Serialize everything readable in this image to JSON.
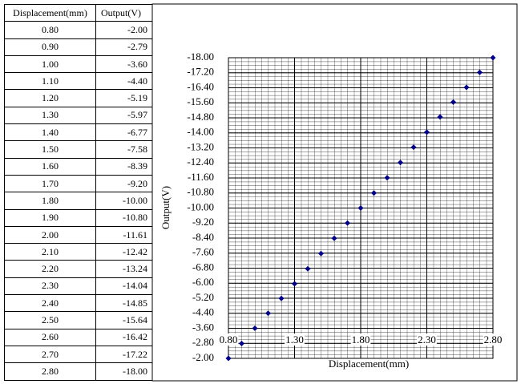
{
  "table": {
    "header": [
      "Displacement(mm)",
      "Output(V)"
    ],
    "rows": [
      [
        "0.80",
        "-2.00"
      ],
      [
        "0.90",
        "-2.79"
      ],
      [
        "1.00",
        "-3.60"
      ],
      [
        "1.10",
        "-4.40"
      ],
      [
        "1.20",
        "-5.19"
      ],
      [
        "1.30",
        "-5.97"
      ],
      [
        "1.40",
        "-6.77"
      ],
      [
        "1.50",
        "-7.58"
      ],
      [
        "1.60",
        "-8.39"
      ],
      [
        "1.70",
        "-9.20"
      ],
      [
        "1.80",
        "-10.00"
      ],
      [
        "1.90",
        "-10.80"
      ],
      [
        "2.00",
        "-11.61"
      ],
      [
        "2.10",
        "-12.42"
      ],
      [
        "2.20",
        "-13.24"
      ],
      [
        "2.30",
        "-14.04"
      ],
      [
        "2.40",
        "-14.85"
      ],
      [
        "2.50",
        "-15.64"
      ],
      [
        "2.60",
        "-16.42"
      ],
      [
        "2.70",
        "-17.22"
      ],
      [
        "2.80",
        "-18.00"
      ]
    ]
  },
  "chart_data": {
    "type": "scatter",
    "xlabel": "Displacement(mm)",
    "ylabel": "Output(V)",
    "x": [
      0.8,
      0.9,
      1.0,
      1.1,
      1.2,
      1.3,
      1.4,
      1.5,
      1.6,
      1.7,
      1.8,
      1.9,
      2.0,
      2.1,
      2.2,
      2.3,
      2.4,
      2.5,
      2.6,
      2.7,
      2.8
    ],
    "series": [
      {
        "color": "#00008b",
        "values": [
          -2.0,
          -2.79,
          -3.6,
          -4.4,
          -5.19,
          -5.97,
          -6.77,
          -7.58,
          -8.39,
          -9.2,
          -10.0,
          -10.8,
          -11.61,
          -12.42,
          -13.24,
          -14.04,
          -14.85,
          -15.64,
          -16.42,
          -17.22,
          -18.0
        ]
      }
    ],
    "xlim": [
      0.8,
      2.8
    ],
    "xticks": [
      {
        "value": 0.8,
        "label": "0.80"
      },
      {
        "value": 1.3,
        "label": "1.30"
      },
      {
        "value": 1.8,
        "label": "1.80"
      },
      {
        "value": 2.3,
        "label": "2.30"
      },
      {
        "value": 2.8,
        "label": "2.80"
      }
    ],
    "ylim": [
      -2,
      -18
    ],
    "yticks": [
      {
        "value": -2,
        "label": "-2.00"
      },
      {
        "value": -2.8,
        "label": "-2.80"
      },
      {
        "value": -3.6,
        "label": "-3.60"
      },
      {
        "value": -4.4,
        "label": "-4.40"
      },
      {
        "value": -5.2,
        "label": "-5.20"
      },
      {
        "value": -6,
        "label": "-6.00"
      },
      {
        "value": -6.8,
        "label": "-6.80"
      },
      {
        "value": -7.6,
        "label": "-7.60"
      },
      {
        "value": -8.4,
        "label": "-8.40"
      },
      {
        "value": -9.2,
        "label": "-9.20"
      },
      {
        "value": -10,
        "label": "-10.00"
      },
      {
        "value": -10.8,
        "label": "-10.80"
      },
      {
        "value": -11.6,
        "label": "-11.60"
      },
      {
        "value": -12.4,
        "label": "-12.40"
      },
      {
        "value": -13.2,
        "label": "-13.20"
      },
      {
        "value": -14,
        "label": "-14.00"
      },
      {
        "value": -14.8,
        "label": "-14.80"
      },
      {
        "value": -15.6,
        "label": "-15.60"
      },
      {
        "value": -16.4,
        "label": "-16.40"
      },
      {
        "value": -17.2,
        "label": "-17.20"
      },
      {
        "value": -18,
        "label": "-18.00"
      }
    ],
    "grid": true
  }
}
